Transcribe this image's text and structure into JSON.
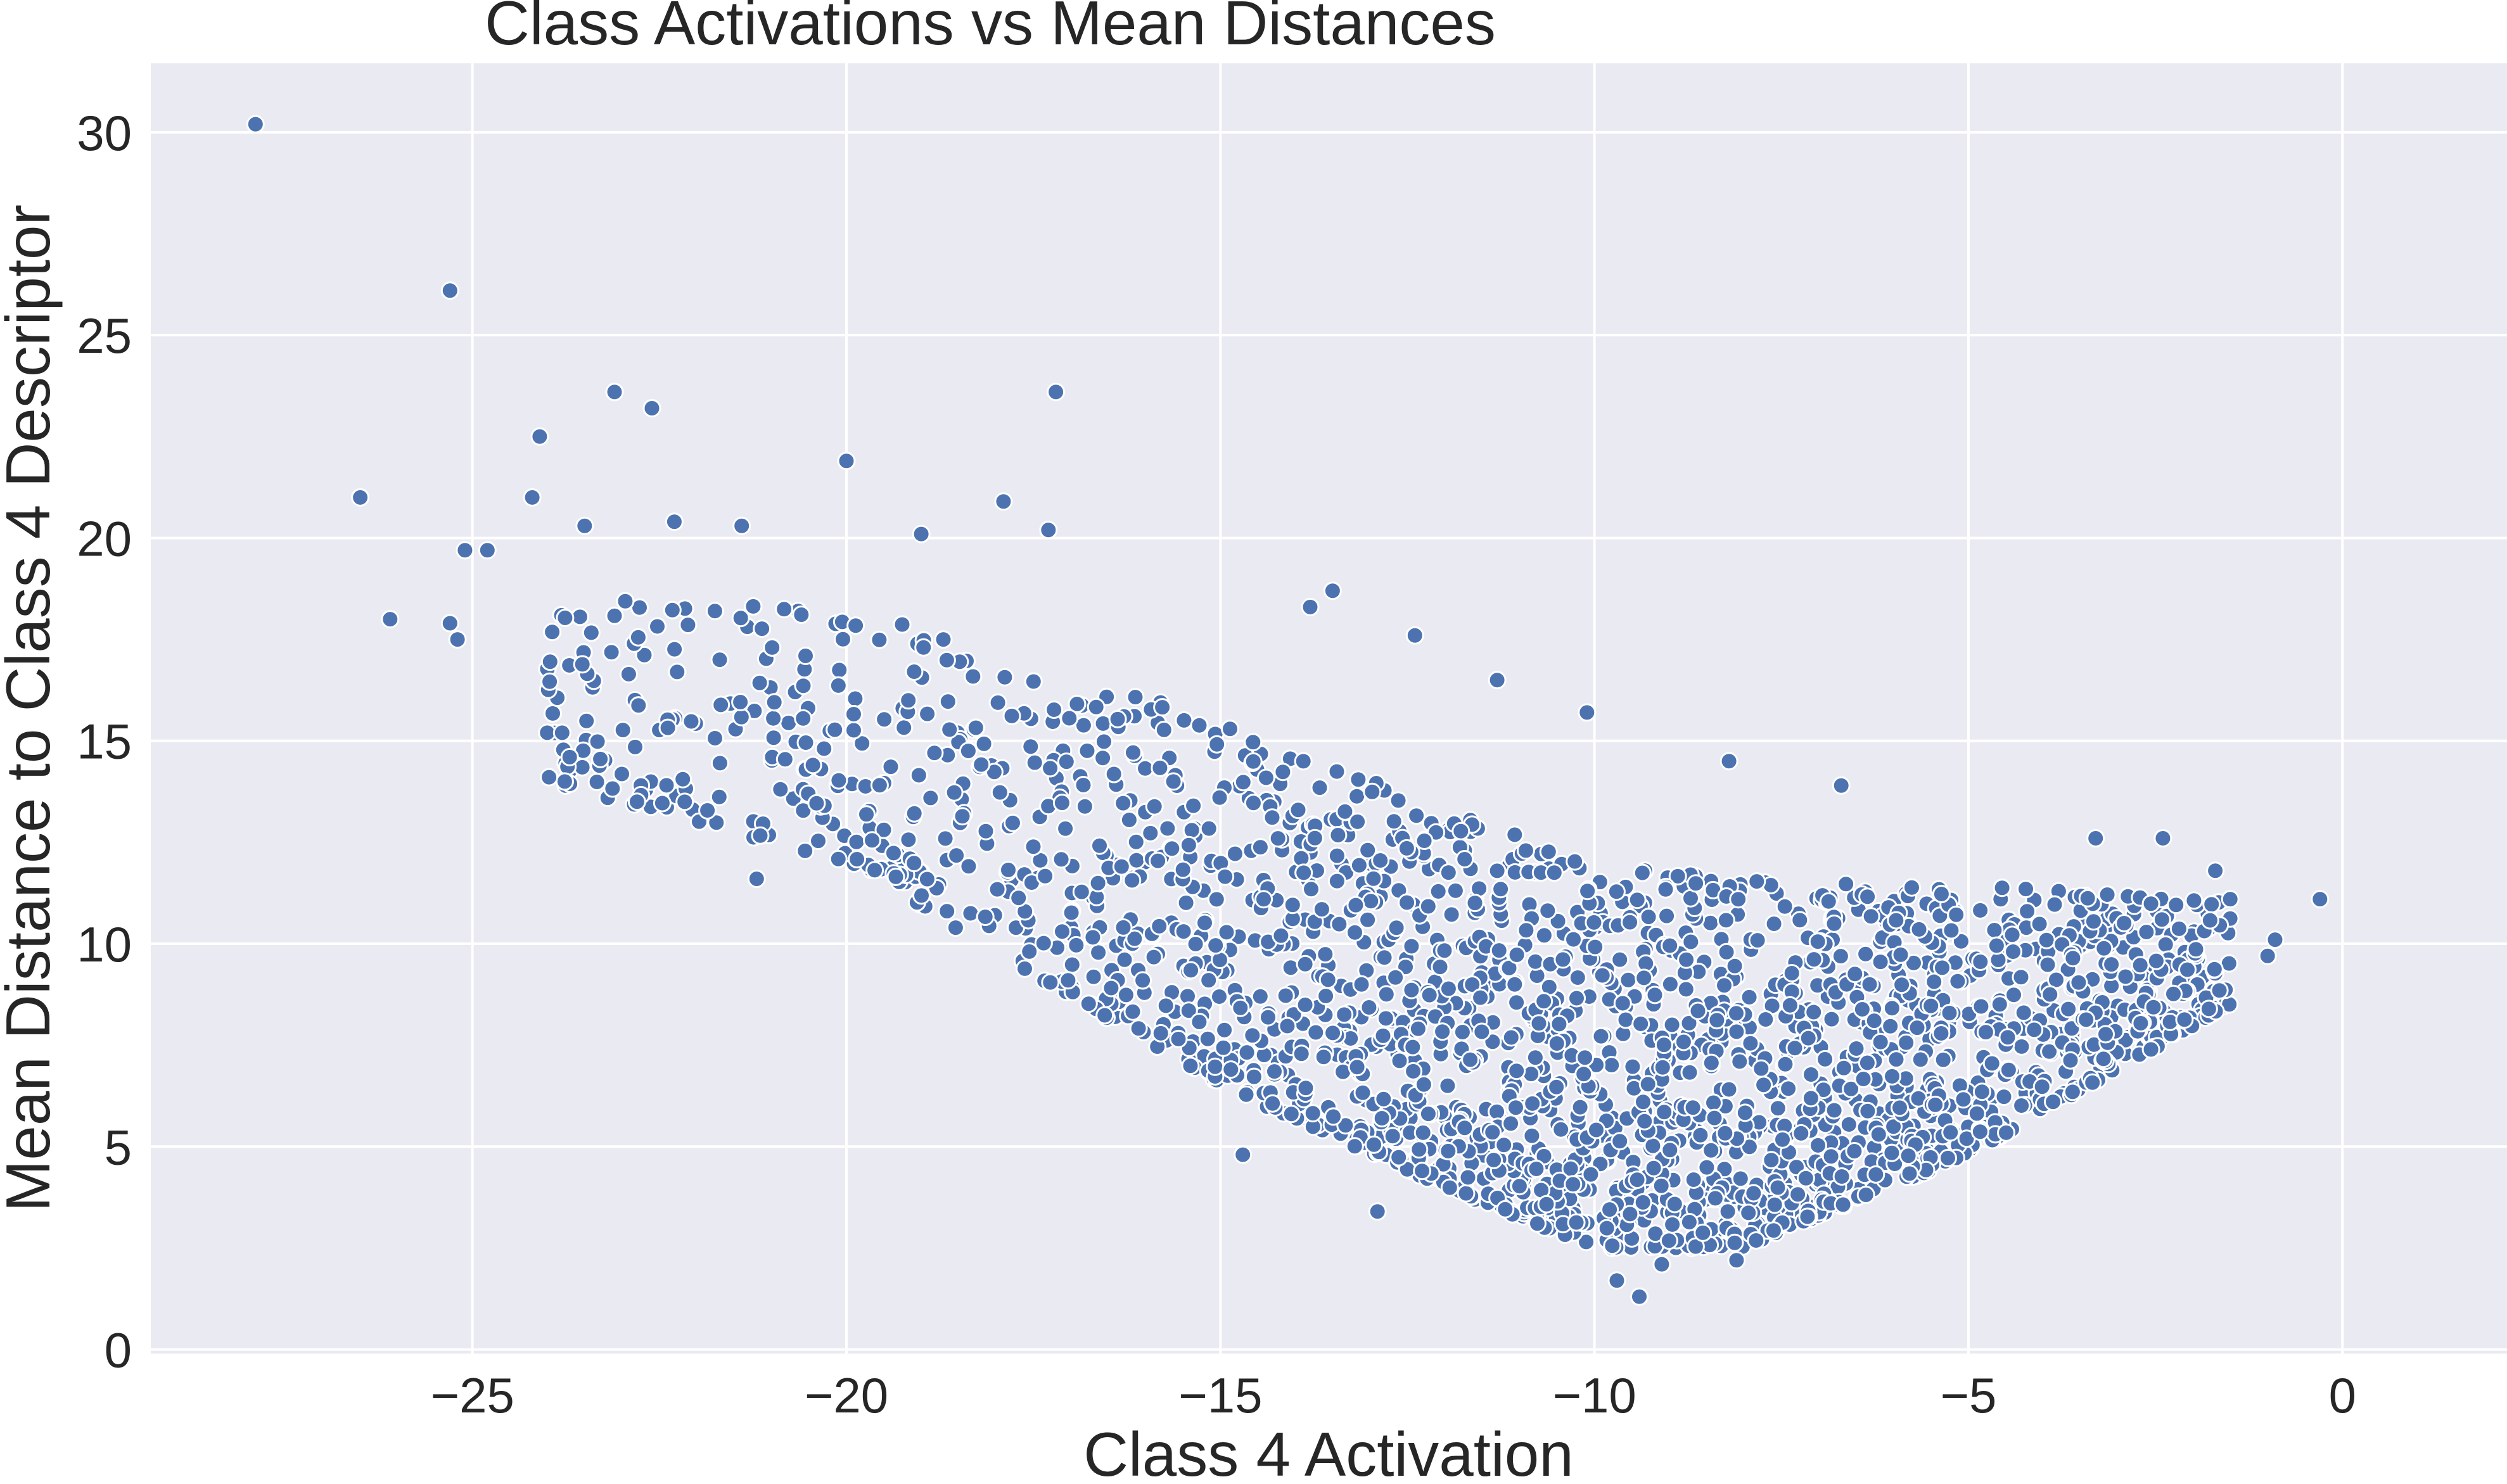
{
  "chart_data": {
    "type": "scatter",
    "title": "Class Activations vs Mean Distances",
    "xlabel": "Class 4 Activation",
    "ylabel": "Mean Distance to Class 4 Descriptor",
    "xlim": [
      -29.3,
      2.2
    ],
    "ylim": [
      -0.1,
      31.7
    ],
    "xticks": [
      -25,
      -20,
      -15,
      -10,
      -5,
      0
    ],
    "xtick_labels": [
      "−25",
      "−20",
      "−15",
      "−10",
      "−5",
      "0"
    ],
    "yticks": [
      0,
      5,
      10,
      15,
      20,
      25,
      30
    ],
    "ytick_labels": [
      "0",
      "5",
      "10",
      "15",
      "20",
      "25",
      "30"
    ],
    "grid": true,
    "legend": "none",
    "colors": {
      "marker": "#4c72b0",
      "marker_edge": "#ffffff",
      "plot_background": "#eaeaf2",
      "grid": "#ffffff"
    },
    "points_outliers": [
      [
        -27.9,
        30.2
      ],
      [
        -25.3,
        26.1
      ],
      [
        -26.5,
        21.0
      ],
      [
        -23.1,
        23.6
      ],
      [
        -22.6,
        23.2
      ],
      [
        -24.1,
        22.5
      ],
      [
        -24.2,
        21.0
      ],
      [
        -17.2,
        23.6
      ],
      [
        -20.0,
        21.9
      ],
      [
        -17.9,
        20.9
      ],
      [
        -26.1,
        18.0
      ],
      [
        -25.1,
        19.7
      ],
      [
        -24.8,
        19.7
      ],
      [
        -25.3,
        17.9
      ],
      [
        -25.2,
        17.5
      ],
      [
        -23.5,
        20.3
      ],
      [
        -22.3,
        20.4
      ],
      [
        -21.4,
        20.3
      ],
      [
        -19.0,
        20.1
      ],
      [
        -17.3,
        20.2
      ],
      [
        -13.8,
        18.3
      ],
      [
        -13.5,
        18.7
      ],
      [
        -12.4,
        17.6
      ],
      [
        -11.3,
        16.5
      ],
      [
        -10.1,
        15.7
      ],
      [
        -8.2,
        14.5
      ],
      [
        -6.7,
        13.9
      ],
      [
        -3.3,
        12.6
      ],
      [
        -2.4,
        12.6
      ],
      [
        -0.3,
        11.1
      ],
      [
        -1.7,
        11.8
      ],
      [
        -1.5,
        11.1
      ],
      [
        -0.9,
        10.1
      ],
      [
        -1.0,
        9.7
      ],
      [
        -9.4,
        1.3
      ],
      [
        -9.7,
        1.7
      ],
      [
        -8.1,
        2.2
      ],
      [
        -9.1,
        2.1
      ],
      [
        -12.9,
        3.4
      ],
      [
        -14.7,
        4.8
      ],
      [
        -24.0,
        15.2
      ],
      [
        -23.8,
        15.2
      ],
      [
        -23.7,
        14.6
      ],
      [
        -22.8,
        13.5
      ],
      [
        -21.2,
        11.6
      ]
    ],
    "point_cloud": {
      "count": 3600,
      "x_range": [
        -24.0,
        -1.5
      ],
      "y_min_at_x": [
        [
          -24.0,
          14.0
        ],
        [
          -20.0,
          12.0
        ],
        [
          -15.0,
          6.5
        ],
        [
          -12.0,
          4.0
        ],
        [
          -10.0,
          2.5
        ],
        [
          -8.0,
          2.5
        ],
        [
          -5.0,
          4.8
        ],
        [
          -1.5,
          8.5
        ]
      ],
      "y_max_at_x": [
        [
          -24.0,
          18.5
        ],
        [
          -20.0,
          18.3
        ],
        [
          -15.0,
          15.5
        ],
        [
          -12.0,
          13.3
        ],
        [
          -10.0,
          12.0
        ],
        [
          -7.0,
          11.5
        ],
        [
          -5.0,
          11.5
        ],
        [
          -1.5,
          11.0
        ]
      ],
      "density_peak_x": -9.0
    }
  }
}
